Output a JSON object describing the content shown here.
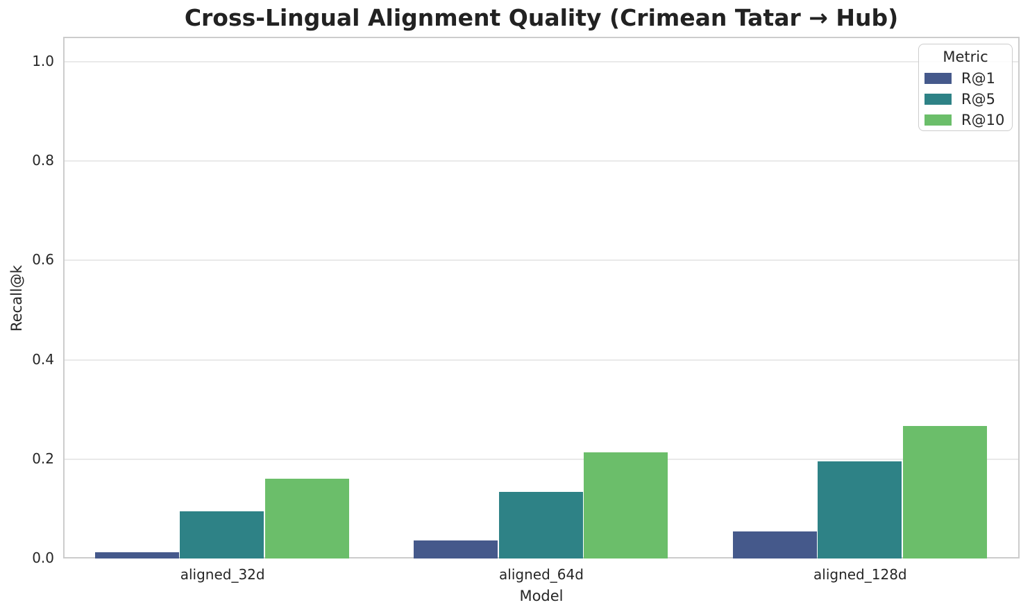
{
  "title": "Cross-Lingual Alignment Quality (Crimean Tatar → Hub)",
  "chart_data": {
    "type": "bar",
    "categories": [
      "aligned_32d",
      "aligned_64d",
      "aligned_128d"
    ],
    "series": [
      {
        "name": "R@1",
        "color": "#45598b",
        "values": [
          0.013,
          0.036,
          0.054
        ]
      },
      {
        "name": "R@5",
        "color": "#2e8286",
        "values": [
          0.095,
          0.134,
          0.195
        ]
      },
      {
        "name": "R@10",
        "color": "#6bbe6a",
        "values": [
          0.16,
          0.213,
          0.266
        ]
      }
    ],
    "title": "Cross-Lingual Alignment Quality (Crimean Tatar → Hub)",
    "xlabel": "Model",
    "ylabel": "Recall@k",
    "ylim": [
      0,
      1.05
    ],
    "yticks": [
      0.0,
      0.2,
      0.4,
      0.6,
      0.8,
      1.0
    ],
    "ytick_labels": [
      "0.0",
      "0.2",
      "0.4",
      "0.6",
      "0.8",
      "1.0"
    ],
    "grid": true,
    "legend": {
      "title": "Metric",
      "position": "upper right"
    },
    "colors": {
      "grid": "#e9e9e9",
      "spine": "#cccccc",
      "text": "#262626",
      "background": "#ffffff"
    },
    "bar_group_width_fraction": 0.8
  }
}
